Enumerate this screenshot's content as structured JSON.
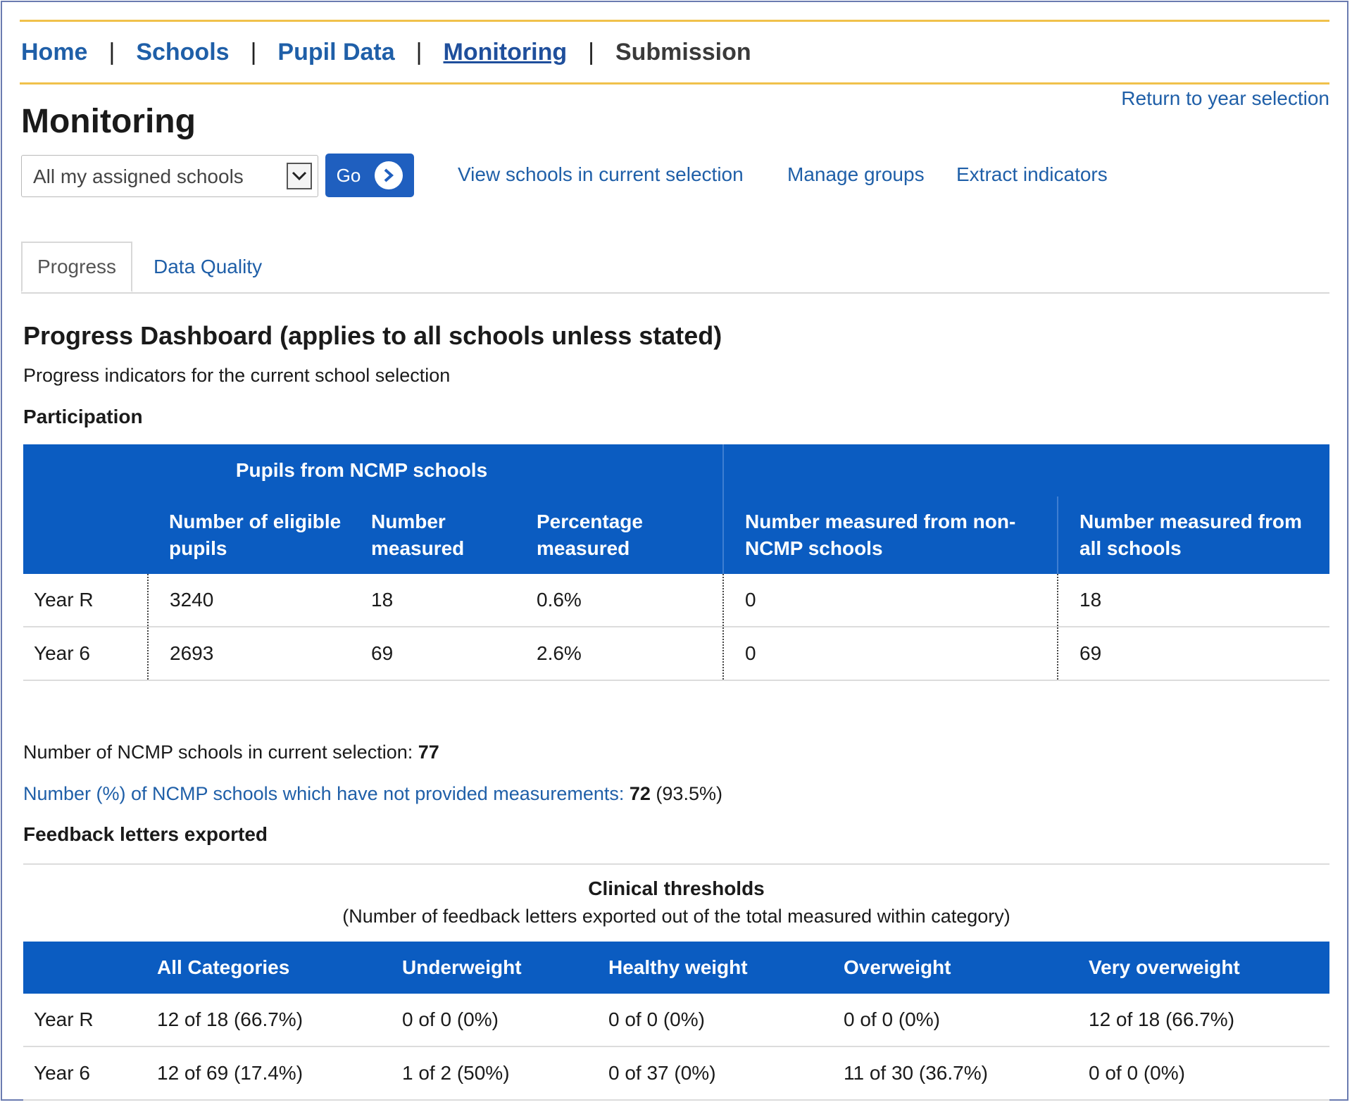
{
  "nav": {
    "home": "Home",
    "schools": "Schools",
    "pupil_data": "Pupil Data",
    "monitoring": "Monitoring",
    "submission": "Submission",
    "separator": "|"
  },
  "return_link": "Return to year selection",
  "page_title": "Monitoring",
  "selector": {
    "value": "All my assigned schools",
    "go_label": "Go"
  },
  "actions": {
    "view_schools": "View schools in current selection",
    "manage_groups": "Manage groups",
    "extract_indicators": "Extract indicators"
  },
  "tabs": {
    "progress": "Progress",
    "data_quality": "Data Quality"
  },
  "dashboard": {
    "title": "Progress Dashboard (applies to all schools unless stated)",
    "subtitle": "Progress indicators for the current school selection",
    "participation_title": "Participation"
  },
  "participation_table": {
    "group_header": "Pupils from NCMP schools",
    "col_eligible": "Number of eligible pupils",
    "col_measured": "Number measured",
    "col_percentage": "Percentage measured",
    "col_non_ncmp": "Number measured from non-NCMP schools",
    "col_all": "Number measured from all schools",
    "rows": [
      {
        "year": "Year R",
        "eligible": "3240",
        "measured": "18",
        "percentage": "0.6%",
        "non_ncmp": "0",
        "all": "18"
      },
      {
        "year": "Year 6",
        "eligible": "2693",
        "measured": "69",
        "percentage": "2.6%",
        "non_ncmp": "0",
        "all": "69"
      }
    ]
  },
  "stats": {
    "ncmp_label": "Number of NCMP schools in current selection: ",
    "ncmp_value": "77",
    "not_provided_label": "Number (%) of NCMP schools which have not provided measurements: ",
    "not_provided_value": "72",
    "not_provided_pct": " (93.5%)"
  },
  "feedback": {
    "title": "Feedback letters exported",
    "clinical_title": "Clinical thresholds",
    "clinical_sub": "(Number of feedback letters exported out of the total measured within category)",
    "col_all": "All Categories",
    "col_under": "Underweight",
    "col_healthy": "Healthy weight",
    "col_over": "Overweight",
    "col_very": "Very overweight",
    "rows": [
      {
        "year": "Year R",
        "all": "12 of 18 (66.7%)",
        "under": "0 of 0 (0%)",
        "healthy": "0 of 0 (0%)",
        "over": "0 of 0 (0%)",
        "very": "12 of 18 (66.7%)"
      },
      {
        "year": "Year 6",
        "all": "12 of 69 (17.4%)",
        "under": "1 of 2 (50%)",
        "healthy": "0 of 37 (0%)",
        "over": "11 of 30 (36.7%)",
        "very": "0 of 0 (0%)"
      }
    ]
  },
  "colors": {
    "link": "#1f5fa8",
    "table_header": "#0b5cc1",
    "nav_rule": "#f0c14b"
  }
}
